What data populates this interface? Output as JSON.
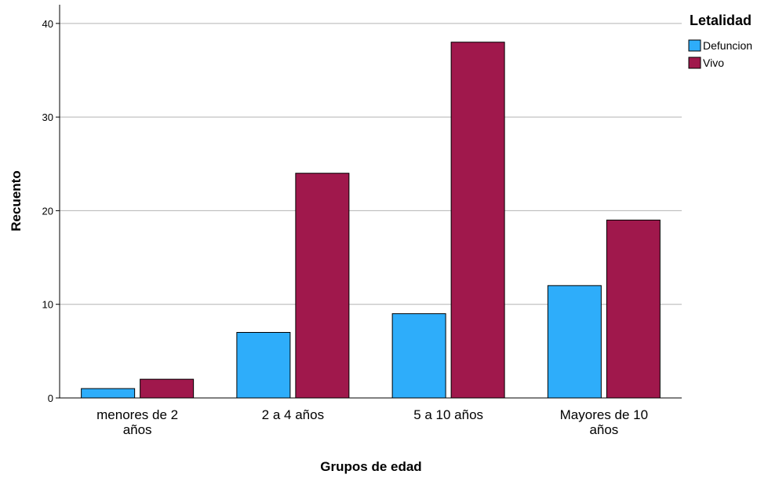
{
  "chart_data": {
    "type": "bar",
    "categories": [
      [
        "menores de 2",
        "años"
      ],
      [
        "2 a 4 años"
      ],
      [
        "5 a 10 años"
      ],
      [
        "Mayores de 10",
        "años"
      ]
    ],
    "series": [
      {
        "name": "Defuncion",
        "color": "#2eadfa",
        "values": [
          1,
          7,
          9,
          12
        ]
      },
      {
        "name": "Vivo",
        "color": "#a0184c",
        "values": [
          2,
          24,
          38,
          19
        ]
      }
    ],
    "xlabel": "Grupos de edad",
    "ylabel": "Recuento",
    "ylim": [
      0,
      42
    ],
    "yticks": [
      0,
      10,
      20,
      30,
      40
    ],
    "legend_title": "Letalidad",
    "legend_position": "top-right",
    "grid": true,
    "gridline_color": "#b3b3b3"
  }
}
